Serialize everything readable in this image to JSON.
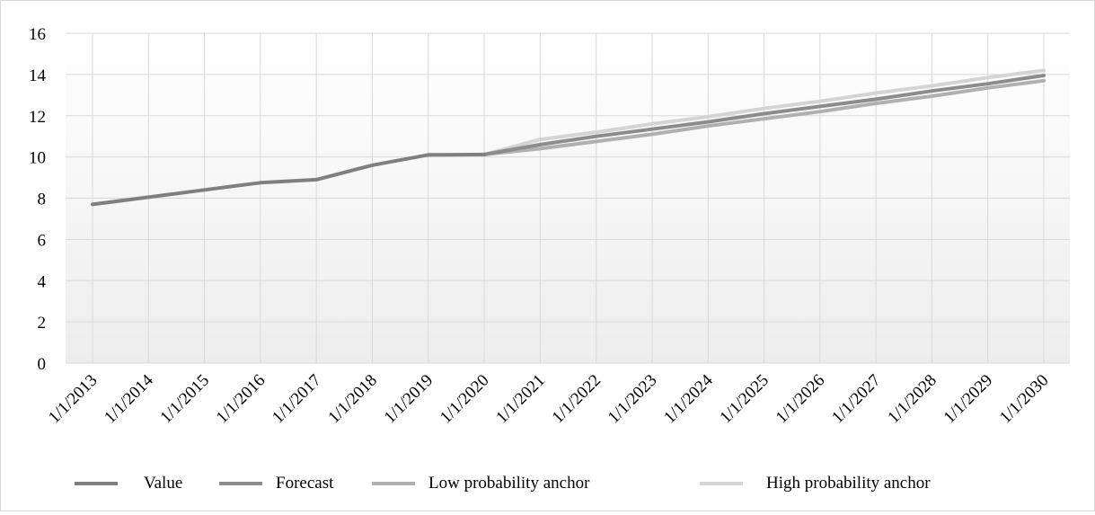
{
  "chart_data": {
    "type": "line",
    "title": "",
    "xlabel": "",
    "ylabel": "",
    "categories": [
      "1/1/2013",
      "1/1/2014",
      "1/1/2015",
      "1/1/2016",
      "1/1/2017",
      "1/1/2018",
      "1/1/2019",
      "1/1/2020",
      "1/1/2021",
      "1/1/2022",
      "1/1/2023",
      "1/1/2024",
      "1/1/2025",
      "1/1/2026",
      "1/1/2027",
      "1/1/2028",
      "1/1/2029",
      "1/1/2030"
    ],
    "ylim": [
      0,
      16
    ],
    "yticks": [
      0,
      2,
      4,
      6,
      8,
      10,
      12,
      14,
      16
    ],
    "grid": true,
    "legend_position": "bottom",
    "series": [
      {
        "name": "Value",
        "color": "#7f7f7f",
        "values": [
          7.7,
          8.05,
          8.4,
          8.75,
          8.9,
          9.6,
          10.1,
          10.12,
          null,
          null,
          null,
          null,
          null,
          null,
          null,
          null,
          null,
          null
        ]
      },
      {
        "name": "Forecast",
        "color": "#8c8c8c",
        "values": [
          null,
          null,
          null,
          null,
          null,
          null,
          null,
          10.12,
          10.6,
          11.0,
          11.35,
          11.7,
          12.1,
          12.45,
          12.8,
          13.2,
          13.55,
          13.95
        ]
      },
      {
        "name": "Low probability anchor",
        "color": "#b0b0b0",
        "values": [
          null,
          null,
          null,
          null,
          null,
          null,
          null,
          10.12,
          10.4,
          10.75,
          11.1,
          11.5,
          11.85,
          12.2,
          12.6,
          12.95,
          13.35,
          13.7
        ]
      },
      {
        "name": "High probability anchor",
        "color": "#d4d4d4",
        "values": [
          null,
          null,
          null,
          null,
          null,
          null,
          null,
          10.12,
          10.85,
          11.2,
          11.6,
          11.95,
          12.35,
          12.7,
          13.1,
          13.45,
          13.85,
          14.2
        ]
      }
    ]
  }
}
